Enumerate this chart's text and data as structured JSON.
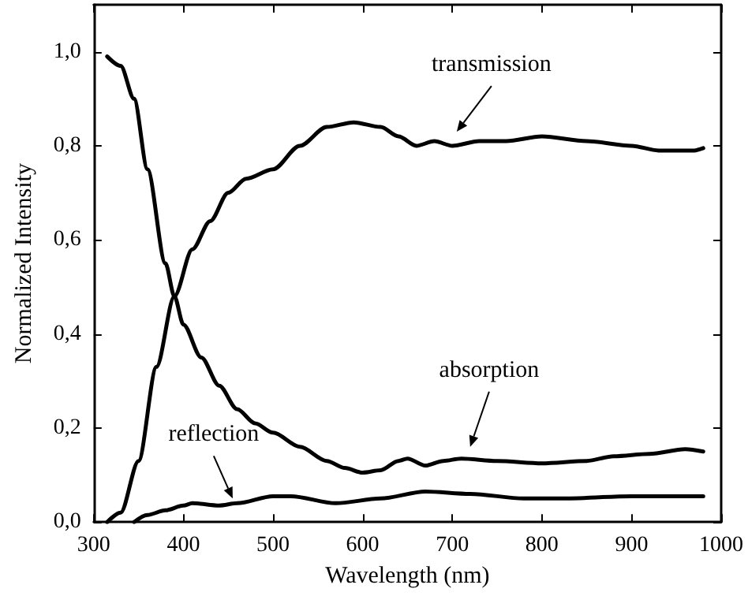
{
  "chart_data": {
    "type": "line",
    "xlabel": "Wavelength (nm)",
    "ylabel": "Normalized Intensity",
    "xlim": [
      300,
      1000
    ],
    "xticks": [
      300,
      400,
      500,
      600,
      700,
      800,
      900,
      1000
    ],
    "ylim": [
      0,
      1.1
    ],
    "yticks": [
      {
        "value": 0,
        "label": "0,0"
      },
      {
        "value": 0.2,
        "label": "0,2"
      },
      {
        "value": 0.4,
        "label": "0,4"
      },
      {
        "value": 0.6,
        "label": "0,6"
      },
      {
        "value": 0.8,
        "label": "0,8"
      },
      {
        "value": 1,
        "label": "1,0"
      }
    ],
    "grid": false,
    "legend": false,
    "marker": "none",
    "line_style": "solid",
    "series": [
      {
        "color": "#000000",
        "x": [
          315,
          330,
          350,
          370,
          390,
          410,
          430,
          450,
          470,
          500,
          530,
          560,
          590,
          620,
          640,
          660,
          680,
          700,
          730,
          760,
          800,
          850,
          900,
          930,
          970,
          980
        ],
        "values": [
          0,
          0.02,
          0.13,
          0.33,
          0.48,
          0.58,
          0.64,
          0.7,
          0.73,
          0.75,
          0.8,
          0.84,
          0.85,
          0.84,
          0.82,
          0.8,
          0.81,
          0.8,
          0.81,
          0.81,
          0.82,
          0.81,
          0.8,
          0.79,
          0.79,
          0.795
        ]
      },
      {
        "color": "#000000",
        "x": [
          315,
          330,
          345,
          360,
          380,
          390,
          400,
          420,
          440,
          460,
          480,
          500,
          530,
          560,
          580,
          600,
          620,
          640,
          650,
          670,
          690,
          710,
          750,
          800,
          850,
          880,
          920,
          960,
          980
        ],
        "values": [
          0.99,
          0.97,
          0.9,
          0.75,
          0.55,
          0.48,
          0.42,
          0.35,
          0.29,
          0.24,
          0.21,
          0.19,
          0.16,
          0.13,
          0.115,
          0.105,
          0.11,
          0.13,
          0.135,
          0.12,
          0.13,
          0.135,
          0.13,
          0.125,
          0.13,
          0.14,
          0.145,
          0.155,
          0.15
        ]
      },
      {
        "color": "#000000",
        "x": [
          345,
          360,
          380,
          400,
          410,
          440,
          460,
          500,
          520,
          570,
          620,
          670,
          720,
          780,
          820,
          900,
          980
        ],
        "values": [
          0,
          0.015,
          0.025,
          0.035,
          0.04,
          0.035,
          0.04,
          0.055,
          0.055,
          0.04,
          0.05,
          0.065,
          0.06,
          0.05,
          0.05,
          0.055,
          0.055
        ]
      }
    ],
    "annotations": [
      {
        "text": "transmission",
        "x": 705,
        "y": 0.82
      },
      {
        "text": "absorption",
        "x": 720,
        "y": 0.15
      },
      {
        "text": "reflection",
        "x": 455,
        "y": 0.04
      }
    ]
  }
}
